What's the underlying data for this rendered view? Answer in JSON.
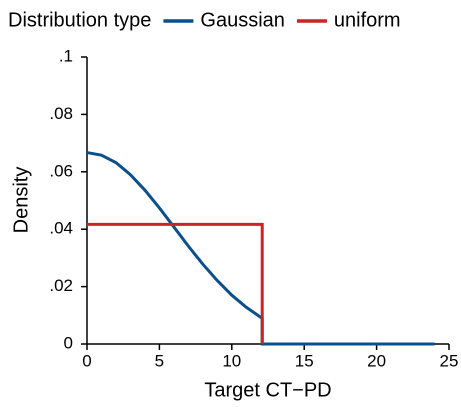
{
  "chart_data": {
    "type": "line",
    "legend_title": "Distribution type",
    "x_label": "Target CT−PD",
    "y_label": "Density",
    "series": [
      {
        "name": "Gaussian",
        "color": "#0b4f8c",
        "x": [
          0,
          1,
          2,
          3,
          4,
          5,
          6,
          7,
          8,
          9,
          10,
          11,
          12,
          12.1,
          12.1,
          24
        ],
        "values": [
          0.0667,
          0.0658,
          0.0632,
          0.059,
          0.0536,
          0.0474,
          0.0408,
          0.0341,
          0.0278,
          0.0221,
          0.017,
          0.0128,
          0.0093,
          0.009,
          0,
          0
        ]
      },
      {
        "name": "uniform",
        "color": "#cc2229",
        "x": [
          0,
          12.1,
          12.1
        ],
        "values": [
          0.0417,
          0.0417,
          0
        ]
      }
    ],
    "xlim": [
      0,
      25
    ],
    "xticks": [
      0,
      5,
      10,
      15,
      20,
      25
    ],
    "ylim": [
      0,
      0.1
    ],
    "yticks": [
      0,
      {
        "value": 0.02,
        "label": ".02"
      },
      {
        "value": 0.04,
        "label": ".04"
      },
      {
        "value": 0.06,
        "label": ".06"
      },
      {
        "value": 0.08,
        "label": ".08"
      },
      {
        "value": 0.1,
        "label": ".1"
      }
    ],
    "grid": false,
    "legend": "top"
  }
}
